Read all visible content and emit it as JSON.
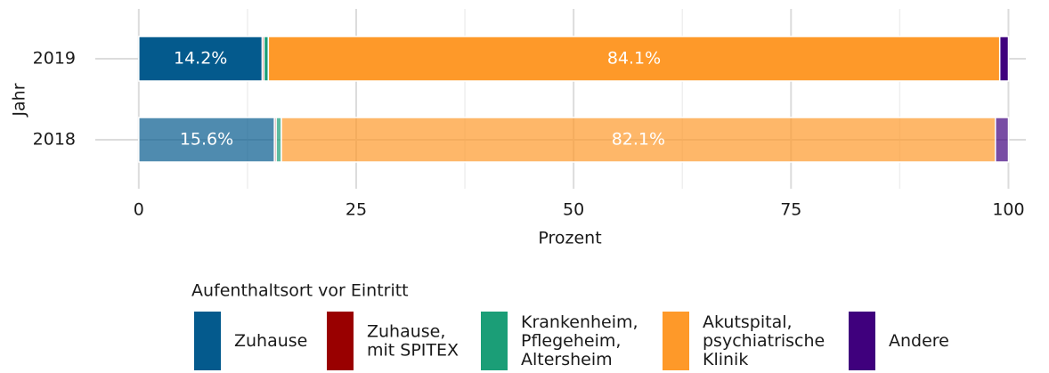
{
  "chart_data": {
    "type": "stacked-barh",
    "categories": [
      "2019",
      "2018"
    ],
    "opacity": [
      1,
      0.7
    ],
    "series": [
      {
        "name": "Zuhause",
        "color": "#045a8d",
        "values": [
          14.2,
          15.6
        ],
        "value_labels": [
          "14.2%",
          "15.6%"
        ]
      },
      {
        "name": "Zuhause,\nmit SPITEX",
        "color": "#990000",
        "values": [
          0.2,
          0.2
        ]
      },
      {
        "name": "Krankenheim,\nPflegeheim,\nAltersheim",
        "color": "#1b9e77",
        "values": [
          0.5,
          0.6
        ]
      },
      {
        "name": "Akutspital,\npsychiatrische\nKlinik",
        "color": "#fe9929",
        "values": [
          84.1,
          82.1
        ],
        "value_labels": [
          "84.1%",
          "82.1%"
        ]
      },
      {
        "name": "Andere",
        "color": "#3f007d",
        "values": [
          1.0,
          1.5
        ]
      }
    ],
    "xlabel": "Prozent",
    "ylabel": "Jahr",
    "legend_title": "Aufenthaltsort vor Eintritt",
    "xlim": [
      -5,
      102
    ],
    "xticks": [
      0,
      25,
      50,
      75,
      100
    ],
    "xminor": [
      12.5,
      37.5,
      62.5,
      87.5
    ],
    "grid": true,
    "legend": "bottom"
  }
}
